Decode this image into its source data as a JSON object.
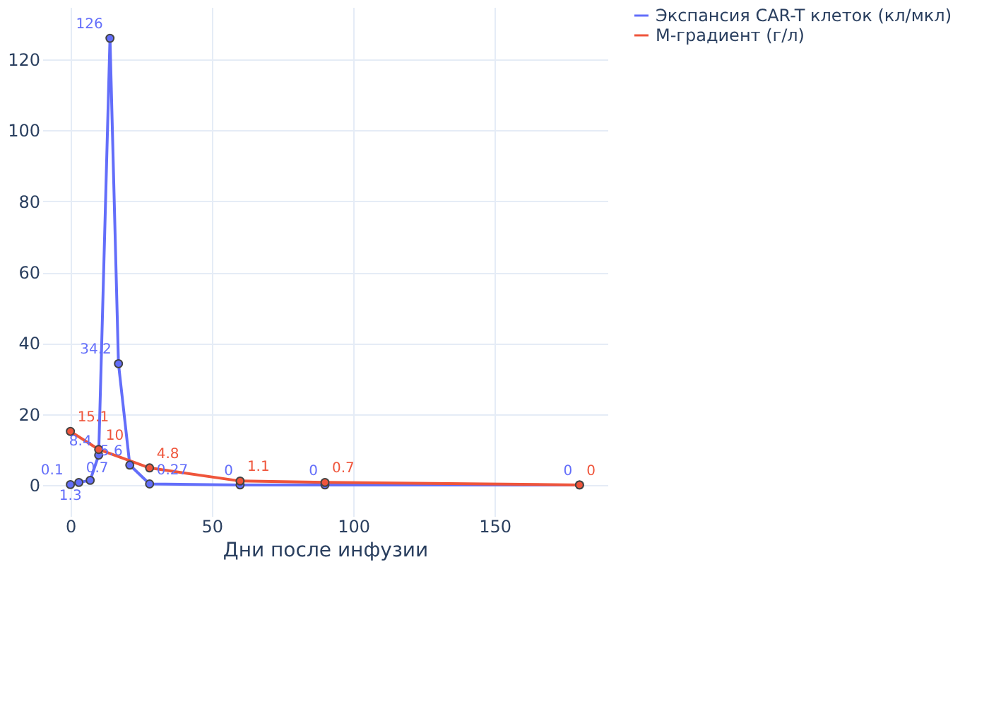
{
  "chart_data": {
    "type": "line",
    "xlabel": "Дни после инфузии",
    "xlim": [
      -9.9,
      189.9
    ],
    "ylim": [
      -8.8,
      134.8
    ],
    "xticks": [
      0,
      50,
      100,
      150
    ],
    "yticks": [
      0,
      20,
      40,
      60,
      80,
      100,
      120
    ],
    "grid": true,
    "legend": "top right",
    "marker": "circle",
    "line_style": "solid",
    "series": [
      {
        "name": "Экспансия CAR-T клеток (кл/мкл)",
        "color": "#636efa",
        "x": [
          0,
          3,
          7,
          10,
          14,
          17,
          21,
          28,
          60,
          90,
          180
        ],
        "values": [
          0.1,
          0.7,
          1.3,
          8.4,
          126,
          34.2,
          5.6,
          0.27,
          0,
          0,
          0
        ],
        "value_labels": [
          "0.1",
          "0.7",
          "1.3",
          "8.4",
          "126",
          "34.2",
          "5.6",
          "0.27",
          "0",
          "0",
          "0"
        ]
      },
      {
        "name": "М-градиент (г/л)",
        "color": "#ef553b",
        "x": [
          0,
          10,
          28,
          60,
          90,
          180
        ],
        "values": [
          15.1,
          10,
          4.8,
          1.1,
          0.7,
          0
        ],
        "value_labels": [
          "15.1",
          "10",
          "4.8",
          "1.1",
          "0.7",
          "0"
        ]
      }
    ]
  }
}
